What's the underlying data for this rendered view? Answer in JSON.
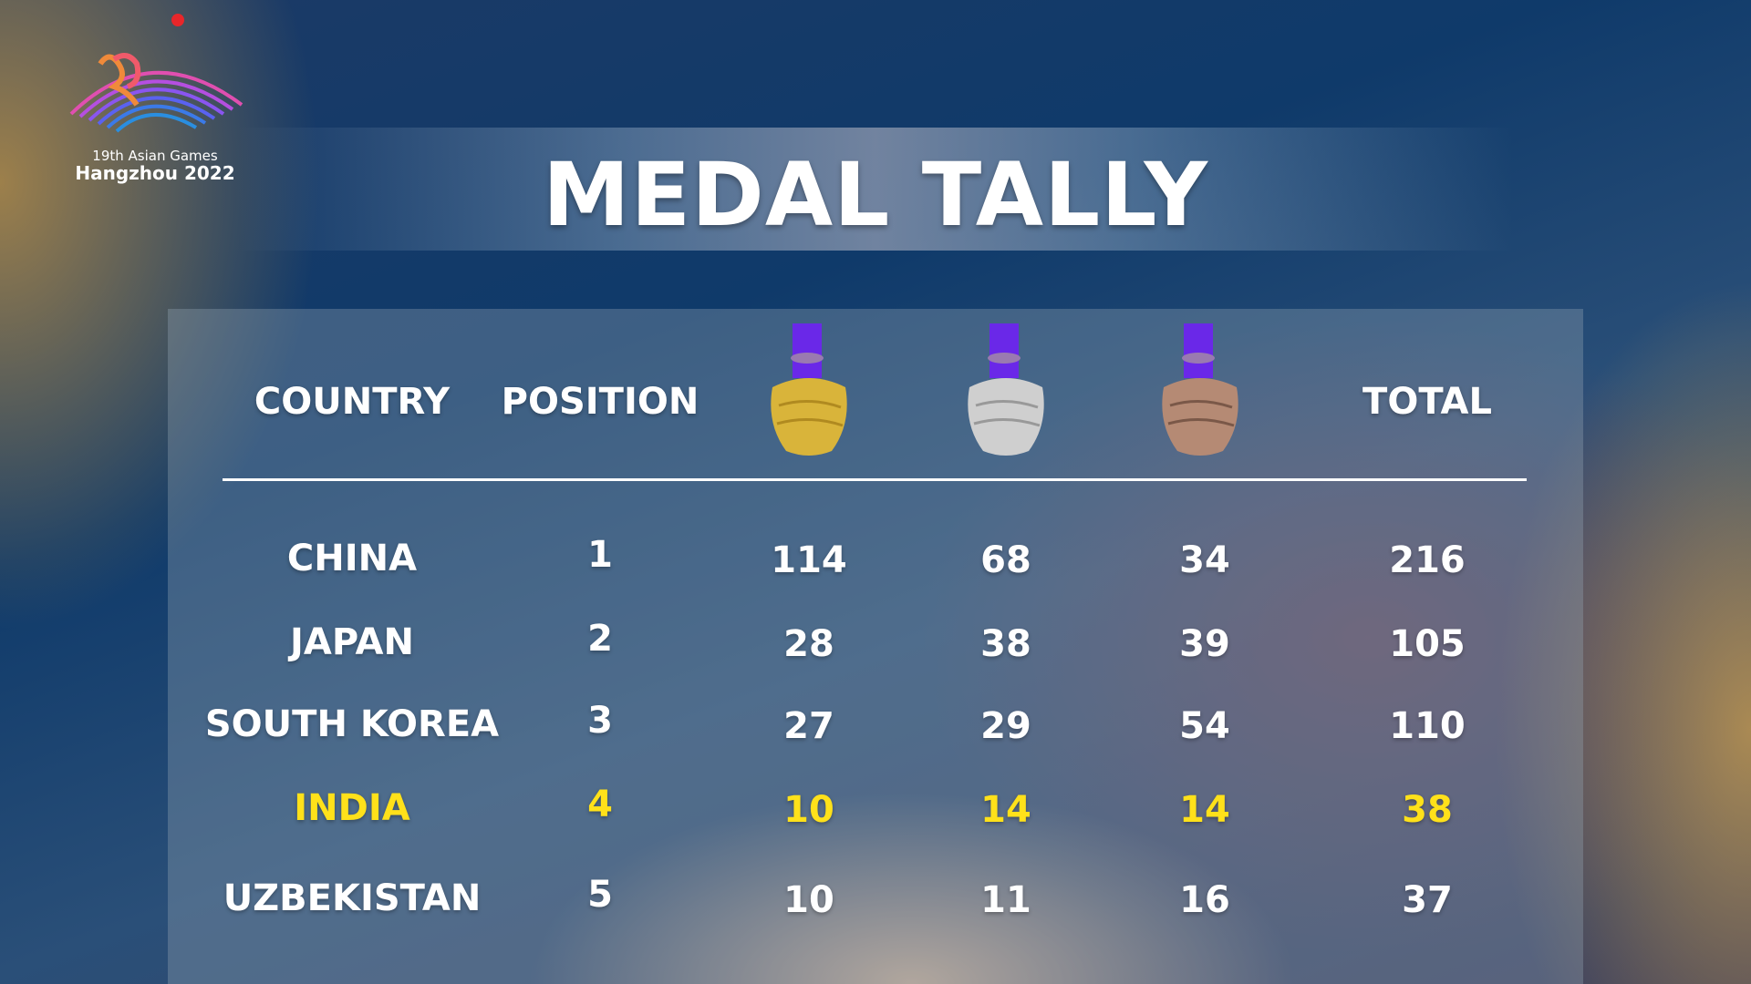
{
  "logo": {
    "subtitle": "19th Asian Games",
    "main": "Hangzhou 2022"
  },
  "title": "MEDAL TALLY",
  "headers": {
    "country": "COUNTRY",
    "position": "POSITION",
    "gold_icon": "gold-medal",
    "silver_icon": "silver-medal",
    "bronze_icon": "bronze-medal",
    "total": "TOTAL"
  },
  "colors": {
    "highlight": "#ffe11a",
    "ribbon": "#6a28e8",
    "gold": "#d9b43a",
    "silver": "#c9c9c9",
    "bronze": "#b58a74"
  },
  "rows": [
    {
      "country": "CHINA",
      "position": "1",
      "gold": "114",
      "silver": "68",
      "bronze": "34",
      "total": "216",
      "highlighted": false
    },
    {
      "country": "JAPAN",
      "position": "2",
      "gold": "28",
      "silver": "38",
      "bronze": "39",
      "total": "105",
      "highlighted": false
    },
    {
      "country": "SOUTH KOREA",
      "position": "3",
      "gold": "27",
      "silver": "29",
      "bronze": "54",
      "total": "110",
      "highlighted": false
    },
    {
      "country": "INDIA",
      "position": "4",
      "gold": "10",
      "silver": "14",
      "bronze": "14",
      "total": "38",
      "highlighted": true
    },
    {
      "country": "UZBEKISTAN",
      "position": "5",
      "gold": "10",
      "silver": "11",
      "bronze": "16",
      "total": "37",
      "highlighted": false
    }
  ]
}
